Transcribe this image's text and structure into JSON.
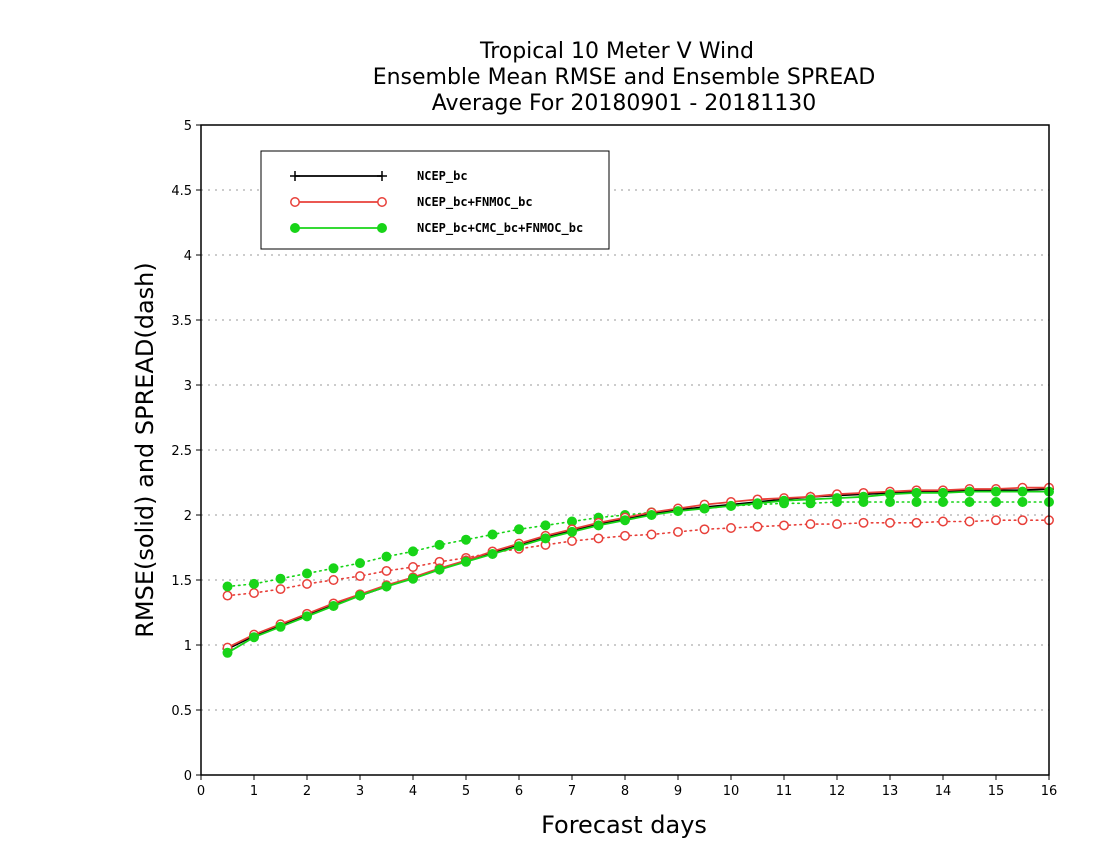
{
  "chart_data": {
    "type": "line",
    "title": [
      "Tropical 10 Meter V Wind",
      "Ensemble Mean RMSE and Ensemble SPREAD",
      "Average For 20180901 - 20181130"
    ],
    "xlabel": "Forecast days",
    "ylabel": "RMSE(solid) and SPREAD(dash)",
    "xlim": [
      0,
      16
    ],
    "ylim": [
      0,
      5
    ],
    "xticks": [
      "0",
      "1",
      "2",
      "3",
      "4",
      "5",
      "6",
      "7",
      "8",
      "9",
      "10",
      "11",
      "12",
      "13",
      "14",
      "15",
      "16"
    ],
    "yticks": [
      "0",
      "0.5",
      "1",
      "1.5",
      "2",
      "2.5",
      "3",
      "3.5",
      "4",
      "4.5",
      "5"
    ],
    "grid": true,
    "legend_position": "top-left",
    "x": [
      0.5,
      1,
      1.5,
      2,
      2.5,
      3,
      3.5,
      4,
      4.5,
      5,
      5.5,
      6,
      6.5,
      7,
      7.5,
      8,
      8.5,
      9,
      9.5,
      10,
      10.5,
      11,
      11.5,
      12,
      12.5,
      13,
      13.5,
      14,
      14.5,
      15,
      15.5,
      16
    ],
    "series": [
      {
        "name": "NCEP_bc",
        "color": "#000000",
        "marker": "plus",
        "rmse": [
          0.97,
          1.07,
          1.15,
          1.23,
          1.31,
          1.38,
          1.45,
          1.52,
          1.58,
          1.65,
          1.71,
          1.77,
          1.83,
          1.88,
          1.93,
          1.97,
          2.01,
          2.04,
          2.06,
          2.08,
          2.1,
          2.12,
          2.14,
          2.15,
          2.16,
          2.17,
          2.18,
          2.18,
          2.19,
          2.19,
          2.19,
          2.2
        ],
        "spread": []
      },
      {
        "name": "NCEP_bc+FNMOC_bc",
        "color": "#e8403a",
        "marker": "open-circle",
        "rmse": [
          0.98,
          1.08,
          1.16,
          1.24,
          1.32,
          1.39,
          1.46,
          1.52,
          1.59,
          1.65,
          1.72,
          1.78,
          1.84,
          1.89,
          1.94,
          1.98,
          2.02,
          2.05,
          2.08,
          2.1,
          2.12,
          2.13,
          2.14,
          2.16,
          2.17,
          2.18,
          2.19,
          2.19,
          2.2,
          2.2,
          2.21,
          2.21
        ],
        "spread": [
          1.38,
          1.4,
          1.43,
          1.47,
          1.5,
          1.53,
          1.57,
          1.6,
          1.64,
          1.67,
          1.71,
          1.74,
          1.77,
          1.8,
          1.82,
          1.84,
          1.85,
          1.87,
          1.89,
          1.9,
          1.91,
          1.92,
          1.93,
          1.93,
          1.94,
          1.94,
          1.94,
          1.95,
          1.95,
          1.96,
          1.96,
          1.96
        ]
      },
      {
        "name": "NCEP_bc+CMC_bc+FNMOC_bc",
        "color": "#18d418",
        "marker": "filled-circle",
        "rmse": [
          0.94,
          1.06,
          1.14,
          1.22,
          1.3,
          1.38,
          1.45,
          1.51,
          1.58,
          1.64,
          1.7,
          1.76,
          1.82,
          1.87,
          1.92,
          1.96,
          2.0,
          2.03,
          2.05,
          2.07,
          2.09,
          2.11,
          2.12,
          2.13,
          2.14,
          2.16,
          2.17,
          2.17,
          2.18,
          2.18,
          2.18,
          2.18
        ],
        "spread": [
          1.45,
          1.47,
          1.51,
          1.55,
          1.59,
          1.63,
          1.68,
          1.72,
          1.77,
          1.81,
          1.85,
          1.89,
          1.92,
          1.95,
          1.98,
          2.0,
          2.02,
          2.04,
          2.05,
          2.07,
          2.08,
          2.09,
          2.09,
          2.1,
          2.1,
          2.1,
          2.1,
          2.1,
          2.1,
          2.1,
          2.1,
          2.1
        ]
      }
    ]
  }
}
